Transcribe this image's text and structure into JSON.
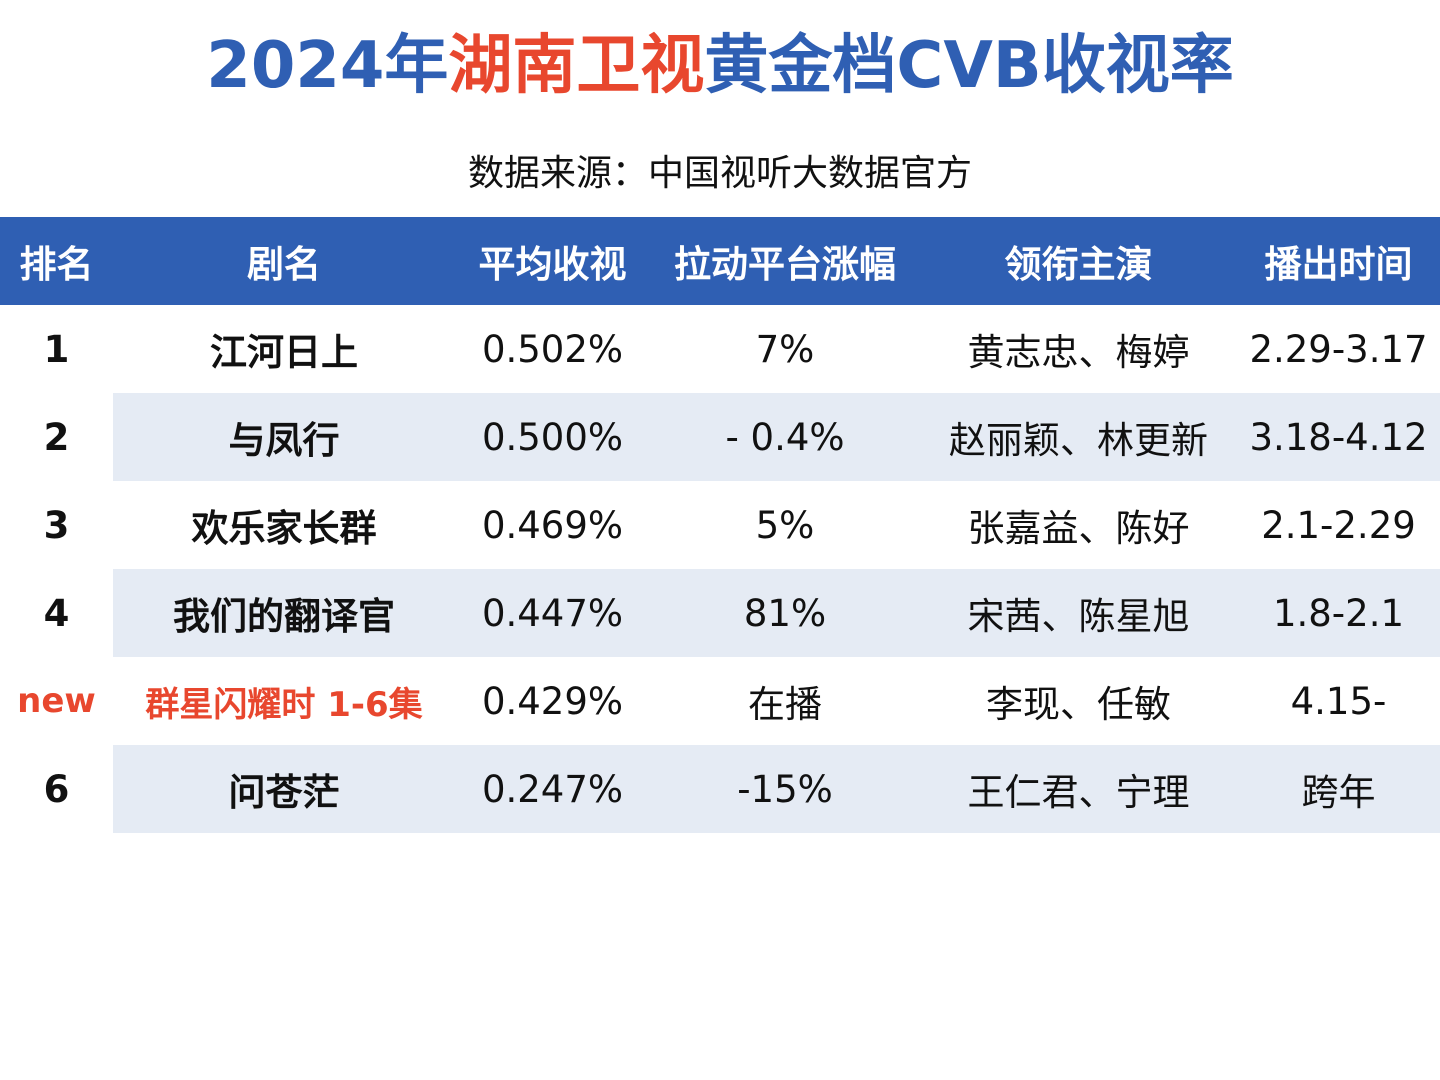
{
  "header": {
    "title": [
      "2024年",
      "湖南卫视",
      "黄金档CVB收视率"
    ],
    "subtitle": "数据来源：中国视听大数据官方"
  },
  "table": {
    "columns": [
      "排名",
      "剧名",
      "平均收视",
      "拉动平台涨幅",
      "领衔主演",
      "播出时间"
    ],
    "rows": [
      [
        "1",
        "江河日上",
        "0.502%",
        "7%",
        "黄志忠、梅婷",
        "2.29-3.17"
      ],
      [
        "2",
        "与凤行",
        "0.500%",
        "- 0.4%",
        "赵丽颖、林更新",
        "3.18-4.12"
      ],
      [
        "3",
        "欢乐家长群",
        "0.469%",
        "5%",
        "张嘉益、陈好",
        "2.1-2.29"
      ],
      [
        "4",
        "我们的翻译官",
        "0.447%",
        "81%",
        "宋茜、陈星旭",
        "1.8-2.1"
      ],
      [
        "new",
        "群星闪耀时 1-6集",
        "0.429%",
        "在播",
        "李现、任敏",
        "4.15-"
      ],
      [
        "6",
        "问苍茫",
        "0.247%",
        "-15%",
        "王仁君、宁理",
        "跨年"
      ]
    ]
  }
}
